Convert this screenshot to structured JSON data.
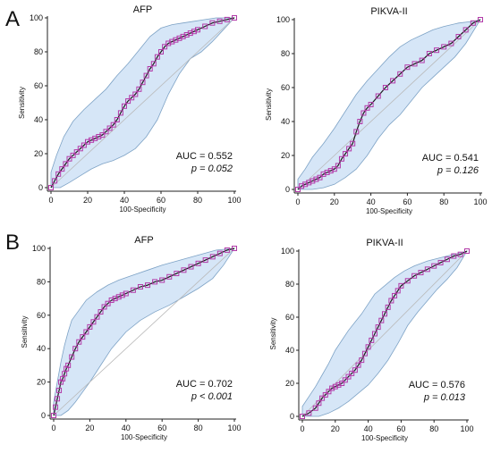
{
  "panel_labels": [
    "A",
    "B"
  ],
  "colors": {
    "band_fill": "#d6e6f7",
    "band_stroke": "#7da2c5",
    "curve": "#1a1a1a",
    "marker": "#b23aa8",
    "diagonal": "#b9b9b9"
  },
  "chart_data": [
    {
      "type": "line",
      "title": "AFP",
      "xlabel": "100-Specificity",
      "ylabel": "Sensitivity",
      "xlim": [
        0,
        100
      ],
      "ylim": [
        0,
        100
      ],
      "xticks": [
        "0",
        "20",
        "40",
        "60",
        "80",
        "100"
      ],
      "yticks": [
        "0",
        "20",
        "40",
        "60",
        "80",
        "100"
      ],
      "auc_text": "AUC = 0.552",
      "p_text": "p = 0.052",
      "series": [
        {
          "x": [
            0,
            2,
            4,
            6,
            8,
            10,
            12,
            14,
            16,
            18,
            20,
            22,
            24,
            26,
            28,
            30,
            32,
            34,
            36,
            38,
            40,
            42,
            44,
            46,
            48,
            50,
            52,
            54,
            56,
            58,
            60,
            62,
            64,
            66,
            68,
            70,
            72,
            74,
            76,
            78,
            80,
            84,
            88,
            92,
            96,
            100
          ],
          "y": [
            0,
            4,
            8,
            11,
            14,
            17,
            19,
            21,
            23,
            25,
            27,
            28,
            29,
            30,
            31,
            33,
            35,
            37,
            40,
            44,
            48,
            51,
            53,
            55,
            58,
            62,
            66,
            70,
            73,
            77,
            80,
            83,
            85,
            86,
            87,
            88,
            89,
            90,
            91,
            92,
            93,
            95,
            97,
            98,
            99,
            100
          ]
        }
      ],
      "ci_upper": {
        "x": [
          0,
          3,
          7,
          12,
          18,
          24,
          30,
          36,
          42,
          48,
          54,
          60,
          66,
          72,
          78,
          84,
          90,
          95,
          100
        ],
        "y": [
          9,
          19,
          30,
          39,
          46,
          52,
          58,
          66,
          73,
          81,
          89,
          94,
          96,
          97,
          98,
          99,
          100,
          100,
          100
        ]
      },
      "ci_lower": {
        "x": [
          0,
          5,
          10,
          16,
          22,
          28,
          34,
          40,
          46,
          52,
          58,
          64,
          70,
          76,
          82,
          88,
          94,
          100
        ],
        "y": [
          0,
          0,
          3,
          7,
          11,
          14,
          16,
          19,
          23,
          30,
          40,
          55,
          67,
          76,
          80,
          86,
          93,
          100
        ]
      }
    },
    {
      "type": "line",
      "title": "PIKVA-II",
      "xlabel": "100-Specificity",
      "ylabel": "Sensitivity",
      "xlim": [
        0,
        100
      ],
      "ylim": [
        0,
        100
      ],
      "xticks": [
        "0",
        "20",
        "40",
        "60",
        "80",
        "100"
      ],
      "yticks": [
        "0",
        "20",
        "40",
        "60",
        "80",
        "100"
      ],
      "auc_text": "AUC = 0.541",
      "p_text": "p = 0.126",
      "series": [
        {
          "x": [
            0,
            2,
            4,
            6,
            8,
            10,
            12,
            14,
            16,
            18,
            20,
            22,
            24,
            26,
            28,
            30,
            32,
            34,
            36,
            38,
            40,
            44,
            48,
            52,
            56,
            60,
            64,
            68,
            72,
            76,
            80,
            84,
            88,
            92,
            96,
            100
          ],
          "y": [
            0,
            2,
            3,
            4,
            5,
            6,
            7,
            9,
            10,
            11,
            12,
            14,
            18,
            21,
            24,
            27,
            34,
            40,
            45,
            48,
            50,
            55,
            60,
            64,
            68,
            72,
            74,
            76,
            80,
            82,
            84,
            86,
            90,
            94,
            98,
            100
          ]
        }
      ],
      "ci_upper": {
        "x": [
          0,
          4,
          8,
          14,
          20,
          26,
          32,
          38,
          44,
          50,
          56,
          62,
          68,
          74,
          80,
          88,
          96,
          100
        ],
        "y": [
          6,
          12,
          19,
          27,
          36,
          46,
          56,
          64,
          71,
          78,
          84,
          88,
          91,
          94,
          96,
          98,
          99,
          100
        ]
      },
      "ci_lower": {
        "x": [
          0,
          8,
          14,
          20,
          26,
          32,
          38,
          44,
          50,
          56,
          62,
          68,
          74,
          80,
          86,
          92,
          100
        ],
        "y": [
          0,
          0,
          1,
          3,
          7,
          12,
          20,
          30,
          38,
          44,
          52,
          60,
          66,
          72,
          78,
          86,
          100
        ]
      }
    },
    {
      "type": "line",
      "title": "AFP",
      "xlabel": "100-Specificity",
      "ylabel": "Sensitivity",
      "xlim": [
        0,
        100
      ],
      "ylim": [
        0,
        100
      ],
      "xticks": [
        "0",
        "20",
        "40",
        "60",
        "80",
        "100"
      ],
      "yticks": [
        "0",
        "20",
        "40",
        "60",
        "80",
        "100"
      ],
      "auc_text": "AUC = 0.702",
      "p_text": "p < 0.001",
      "series": [
        {
          "x": [
            0,
            1,
            2,
            3,
            4,
            5,
            6,
            7,
            8,
            10,
            12,
            14,
            16,
            18,
            20,
            22,
            24,
            26,
            28,
            30,
            32,
            34,
            36,
            38,
            40,
            44,
            48,
            52,
            56,
            60,
            64,
            68,
            72,
            76,
            80,
            84,
            88,
            92,
            96,
            100
          ],
          "y": [
            0,
            5,
            10,
            15,
            20,
            22,
            25,
            28,
            30,
            35,
            40,
            44,
            47,
            50,
            53,
            56,
            59,
            62,
            65,
            67,
            69,
            70,
            71,
            72,
            73,
            75,
            77,
            78,
            80,
            81,
            83,
            85,
            87,
            89,
            91,
            93,
            95,
            97,
            99,
            100
          ]
        }
      ],
      "ci_upper": {
        "x": [
          0,
          2,
          4,
          6,
          8,
          10,
          14,
          18,
          24,
          30,
          36,
          44,
          52,
          60,
          70,
          80,
          90,
          100
        ],
        "y": [
          8,
          20,
          32,
          42,
          50,
          57,
          63,
          69,
          74,
          78,
          81,
          84,
          87,
          90,
          93,
          96,
          99,
          100
        ]
      },
      "ci_lower": {
        "x": [
          0,
          4,
          8,
          12,
          16,
          20,
          26,
          32,
          40,
          48,
          56,
          64,
          72,
          80,
          88,
          94,
          100
        ],
        "y": [
          0,
          0,
          3,
          8,
          14,
          20,
          30,
          40,
          50,
          57,
          62,
          66,
          71,
          76,
          82,
          90,
          100
        ]
      }
    },
    {
      "type": "line",
      "title": "PIKVA-II",
      "xlabel": "100-Specificity",
      "ylabel": "Sensitivity",
      "xlim": [
        0,
        100
      ],
      "ylim": [
        0,
        100
      ],
      "xticks": [
        "0",
        "20",
        "40",
        "60",
        "80",
        "100"
      ],
      "yticks": [
        "0",
        "20",
        "40",
        "60",
        "80",
        "100"
      ],
      "auc_text": "AUC = 0.576",
      "p_text": "p = 0.013",
      "series": [
        {
          "x": [
            0,
            4,
            8,
            10,
            12,
            14,
            16,
            18,
            20,
            22,
            24,
            26,
            28,
            30,
            32,
            34,
            36,
            38,
            40,
            42,
            44,
            46,
            48,
            50,
            52,
            54,
            56,
            58,
            60,
            64,
            68,
            72,
            76,
            80,
            84,
            88,
            92,
            96,
            100
          ],
          "y": [
            0,
            2,
            5,
            8,
            11,
            13,
            15,
            17,
            18,
            19,
            20,
            22,
            24,
            26,
            28,
            31,
            34,
            38,
            42,
            46,
            50,
            54,
            58,
            62,
            66,
            70,
            73,
            76,
            79,
            82,
            85,
            87,
            89,
            91,
            93,
            95,
            97,
            98,
            100
          ]
        }
      ],
      "ci_upper": {
        "x": [
          0,
          4,
          8,
          12,
          16,
          20,
          24,
          28,
          32,
          36,
          40,
          44,
          50,
          56,
          62,
          68,
          76,
          84,
          92,
          100
        ],
        "y": [
          6,
          12,
          18,
          25,
          32,
          40,
          46,
          52,
          57,
          62,
          68,
          74,
          79,
          84,
          88,
          91,
          94,
          96,
          98,
          100
        ]
      },
      "ci_lower": {
        "x": [
          0,
          10,
          16,
          22,
          28,
          34,
          40,
          46,
          52,
          58,
          64,
          70,
          76,
          82,
          88,
          94,
          100
        ],
        "y": [
          0,
          0,
          2,
          5,
          9,
          14,
          19,
          26,
          34,
          44,
          55,
          63,
          70,
          77,
          83,
          90,
          100
        ]
      }
    }
  ]
}
